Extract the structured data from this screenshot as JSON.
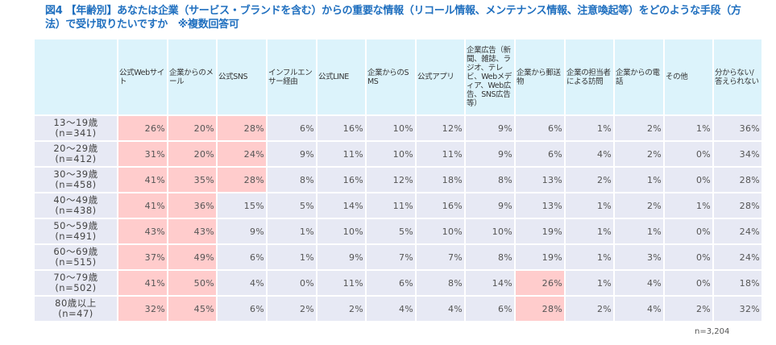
{
  "title": "図4 【年齢別】あなたは企業（サービス・ブランドを含む）からの重要な情報（リコール情報、メンテナンス情報、注意喚起等）をどのような手段（方法）で受け取りたいですか　※複数回答可",
  "note": "n=3,204",
  "colors": {
    "header_bg": "#dcf3fb",
    "cell_bg": "#e7e9f4",
    "highlight_bg": "#ffcccc",
    "title": "#1f6fbf"
  },
  "headers": [
    "",
    "公式Webサイト",
    "企業からのメール",
    "公式SNS",
    "インフルエンサー経由",
    "公式LINE",
    "企業からのSMS",
    "公式アプリ",
    "企業広告（新聞、雑誌、ラジオ、テレビ、Webメディア、Web広告、SNS広告等）",
    "企業から郵送物",
    "企業の担当者による訪問",
    "企業からの電話",
    "その他",
    "分からない/答えられない"
  ],
  "rows": [
    {
      "age": "13〜19歳",
      "n": "(n=341)",
      "values": [
        "26%",
        "20%",
        "28%",
        "6%",
        "16%",
        "10%",
        "12%",
        "9%",
        "6%",
        "1%",
        "2%",
        "1%",
        "36%"
      ],
      "hl": [
        0,
        1,
        2
      ]
    },
    {
      "age": "20〜29歳",
      "n": "(n=412)",
      "values": [
        "31%",
        "20%",
        "24%",
        "9%",
        "11%",
        "10%",
        "11%",
        "9%",
        "6%",
        "4%",
        "2%",
        "0%",
        "34%"
      ],
      "hl": [
        0,
        1,
        2
      ]
    },
    {
      "age": "30〜39歳",
      "n": "(n=458)",
      "values": [
        "41%",
        "35%",
        "28%",
        "8%",
        "16%",
        "12%",
        "18%",
        "8%",
        "13%",
        "2%",
        "1%",
        "0%",
        "28%"
      ],
      "hl": [
        0,
        1,
        2
      ]
    },
    {
      "age": "40〜49歳",
      "n": "(n=438)",
      "values": [
        "41%",
        "36%",
        "15%",
        "5%",
        "14%",
        "11%",
        "16%",
        "9%",
        "13%",
        "1%",
        "2%",
        "1%",
        "28%"
      ],
      "hl": [
        0,
        1
      ]
    },
    {
      "age": "50〜59歳",
      "n": "(n=491)",
      "values": [
        "43%",
        "43%",
        "9%",
        "1%",
        "10%",
        "5%",
        "10%",
        "10%",
        "19%",
        "1%",
        "1%",
        "0%",
        "24%"
      ],
      "hl": [
        0,
        1
      ]
    },
    {
      "age": "60〜69歳",
      "n": "(n=515)",
      "values": [
        "37%",
        "49%",
        "6%",
        "1%",
        "9%",
        "7%",
        "7%",
        "8%",
        "19%",
        "1%",
        "3%",
        "0%",
        "24%"
      ],
      "hl": [
        0,
        1
      ]
    },
    {
      "age": "70〜79歳",
      "n": "(n=502)",
      "values": [
        "41%",
        "50%",
        "4%",
        "0%",
        "11%",
        "6%",
        "8%",
        "14%",
        "26%",
        "1%",
        "4%",
        "0%",
        "18%"
      ],
      "hl": [
        0,
        1,
        8
      ]
    },
    {
      "age": "80歳以上",
      "n": "(n=47)",
      "values": [
        "32%",
        "45%",
        "6%",
        "2%",
        "2%",
        "4%",
        "4%",
        "6%",
        "28%",
        "2%",
        "4%",
        "2%",
        "32%"
      ],
      "hl": [
        0,
        1,
        8
      ]
    }
  ],
  "chart_data": {
    "type": "table",
    "title": "図4 【年齢別】あなたは企業（サービス・ブランドを含む）からの重要な情報（リコール情報、メンテナンス情報、注意喚起等）をどのような手段（方法）で受け取りたいですか　※複数回答可",
    "categories": [
      "公式Webサイト",
      "企業からのメール",
      "公式SNS",
      "インフルエンサー経由",
      "公式LINE",
      "企業からのSMS",
      "公式アプリ",
      "企業広告（新聞、雑誌、ラジオ、テレビ、Webメディア、Web広告、SNS広告等）",
      "企業から郵送物",
      "企業の担当者による訪問",
      "企業からの電話",
      "その他",
      "分からない/答えられない"
    ],
    "series": [
      {
        "name": "13〜19歳 (n=341)",
        "values": [
          26,
          20,
          28,
          6,
          16,
          10,
          12,
          9,
          6,
          1,
          2,
          1,
          36
        ]
      },
      {
        "name": "20〜29歳 (n=412)",
        "values": [
          31,
          20,
          24,
          9,
          11,
          10,
          11,
          9,
          6,
          4,
          2,
          0,
          34
        ]
      },
      {
        "name": "30〜39歳 (n=458)",
        "values": [
          41,
          35,
          28,
          8,
          16,
          12,
          18,
          8,
          13,
          2,
          1,
          0,
          28
        ]
      },
      {
        "name": "40〜49歳 (n=438)",
        "values": [
          41,
          36,
          15,
          5,
          14,
          11,
          16,
          9,
          13,
          1,
          2,
          1,
          28
        ]
      },
      {
        "name": "50〜59歳 (n=491)",
        "values": [
          43,
          43,
          9,
          1,
          10,
          5,
          10,
          10,
          19,
          1,
          1,
          0,
          24
        ]
      },
      {
        "name": "60〜69歳 (n=515)",
        "values": [
          37,
          49,
          6,
          1,
          9,
          7,
          7,
          8,
          19,
          1,
          3,
          0,
          24
        ]
      },
      {
        "name": "70〜79歳 (n=502)",
        "values": [
          41,
          50,
          4,
          0,
          11,
          6,
          8,
          14,
          26,
          1,
          4,
          0,
          18
        ]
      },
      {
        "name": "80歳以上 (n=47)",
        "values": [
          32,
          45,
          6,
          2,
          2,
          4,
          4,
          6,
          28,
          2,
          4,
          2,
          32
        ]
      }
    ],
    "unit": "%",
    "total_n": "n=3,204",
    "highlight": "top values per age group shaded pink"
  }
}
